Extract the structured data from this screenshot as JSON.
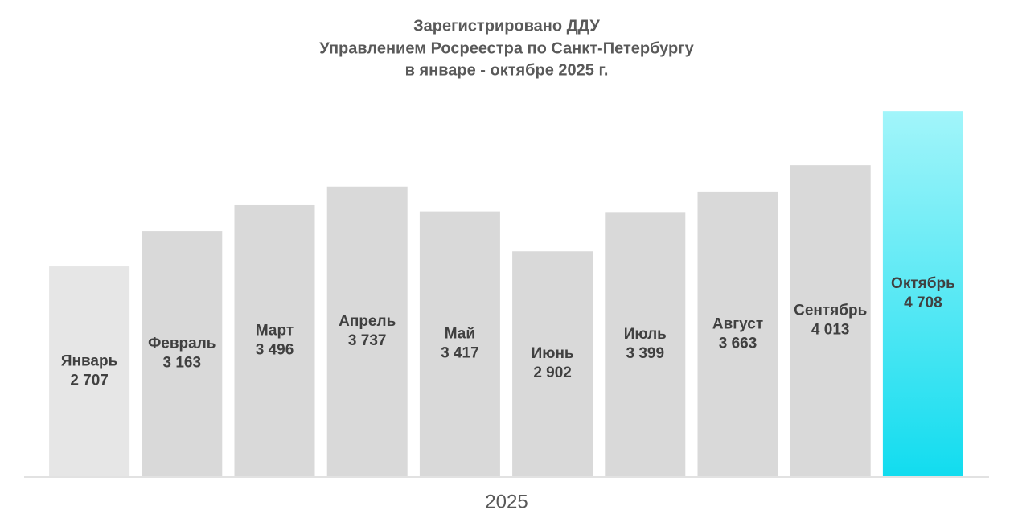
{
  "chart_data": {
    "type": "bar",
    "title": [
      "Зарегистрировано ДДУ",
      "Управлением Росреестра по Санкт-Петербургу",
      "в январе - октябре 2025 г."
    ],
    "x_label": "2025",
    "categories": [
      "Январь",
      "Февраль",
      "Март",
      "Апрель",
      "Май",
      "Июнь",
      "Июль",
      "Август",
      "Сентябрь",
      "Октябрь"
    ],
    "values": [
      2707,
      3163,
      3496,
      3737,
      3417,
      2902,
      3399,
      3663,
      4013,
      4708
    ],
    "value_labels": [
      "2 707",
      "3 163",
      "3 496",
      "3 737",
      "3 417",
      "2 902",
      "3 399",
      "3 663",
      "4 013",
      "4 708"
    ],
    "colors": [
      "#e6e6e6",
      "#d9d9d9",
      "#d9d9d9",
      "#d9d9d9",
      "#d9d9d9",
      "#d9d9d9",
      "#d9d9d9",
      "#d9d9d9",
      "#d9d9d9",
      "url(#cyan)"
    ],
    "ylim": [
      0,
      5000
    ]
  }
}
